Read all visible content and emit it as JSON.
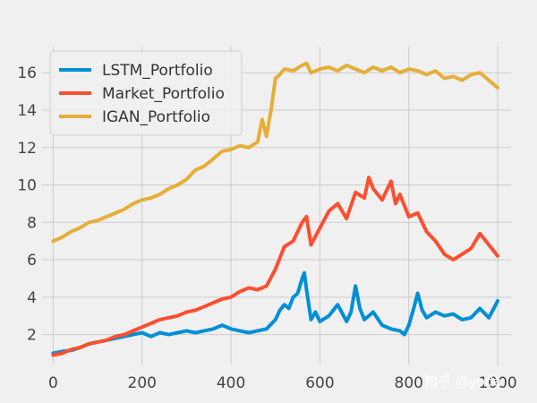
{
  "chart_data": {
    "type": "line",
    "title": "",
    "xlabel": "",
    "ylabel": "",
    "xlim": [
      -25,
      1030
    ],
    "ylim": [
      0.4,
      17.4
    ],
    "xticks": [
      0,
      200,
      400,
      600,
      800,
      1000
    ],
    "yticks": [
      2,
      4,
      6,
      8,
      10,
      12,
      14,
      16
    ],
    "grid": true,
    "legend_position": "top-left",
    "series": [
      {
        "name": "LSTM_Portfolio",
        "color": "#008fd5",
        "x": [
          0,
          20,
          40,
          60,
          80,
          100,
          120,
          140,
          160,
          180,
          200,
          220,
          240,
          260,
          280,
          300,
          320,
          340,
          360,
          380,
          400,
          420,
          440,
          460,
          480,
          500,
          510,
          520,
          530,
          540,
          550,
          560,
          565,
          570,
          575,
          580,
          590,
          600,
          620,
          640,
          660,
          670,
          680,
          690,
          700,
          720,
          740,
          760,
          780,
          790,
          800,
          810,
          820,
          830,
          840,
          860,
          880,
          900,
          920,
          940,
          960,
          980,
          1000
        ],
        "y": [
          1.0,
          1.1,
          1.15,
          1.3,
          1.5,
          1.6,
          1.7,
          1.8,
          1.9,
          2.0,
          2.1,
          1.9,
          2.1,
          2.0,
          2.1,
          2.2,
          2.1,
          2.2,
          2.3,
          2.5,
          2.3,
          2.2,
          2.1,
          2.2,
          2.3,
          2.8,
          3.3,
          3.6,
          3.4,
          4.0,
          4.2,
          5.0,
          5.3,
          4.4,
          3.6,
          2.8,
          3.2,
          2.7,
          3.0,
          3.6,
          2.7,
          3.2,
          4.6,
          3.4,
          2.8,
          3.2,
          2.5,
          2.3,
          2.2,
          2.0,
          2.5,
          3.3,
          4.2,
          3.3,
          2.9,
          3.2,
          3.0,
          3.1,
          2.8,
          2.9,
          3.4,
          2.9,
          3.8
        ]
      },
      {
        "name": "Market_Portfolio",
        "color": "#fc4f30",
        "x": [
          0,
          20,
          40,
          60,
          80,
          100,
          120,
          140,
          160,
          180,
          200,
          220,
          240,
          260,
          280,
          300,
          320,
          340,
          360,
          380,
          400,
          420,
          440,
          460,
          480,
          500,
          520,
          540,
          560,
          570,
          580,
          600,
          620,
          640,
          660,
          680,
          700,
          710,
          720,
          740,
          760,
          770,
          780,
          800,
          820,
          840,
          860,
          880,
          900,
          920,
          940,
          960,
          980,
          1000
        ],
        "y": [
          0.9,
          1.0,
          1.2,
          1.3,
          1.5,
          1.6,
          1.7,
          1.9,
          2.0,
          2.2,
          2.4,
          2.6,
          2.8,
          2.9,
          3.0,
          3.2,
          3.3,
          3.5,
          3.7,
          3.9,
          4.0,
          4.3,
          4.5,
          4.4,
          4.6,
          5.5,
          6.7,
          7.0,
          8.0,
          8.3,
          6.8,
          7.7,
          8.6,
          9.0,
          8.2,
          9.6,
          9.3,
          10.4,
          9.8,
          9.2,
          10.2,
          9.0,
          9.5,
          8.3,
          8.5,
          7.5,
          7.0,
          6.3,
          6.0,
          6.3,
          6.6,
          7.4,
          6.8,
          6.2
        ]
      },
      {
        "name": "IGAN_Portfolio",
        "color": "#e5ae38",
        "x": [
          0,
          20,
          40,
          60,
          80,
          100,
          120,
          140,
          160,
          180,
          200,
          220,
          240,
          260,
          280,
          300,
          320,
          340,
          360,
          380,
          400,
          420,
          440,
          460,
          470,
          480,
          490,
          500,
          510,
          520,
          540,
          560,
          570,
          580,
          600,
          620,
          640,
          660,
          680,
          700,
          720,
          740,
          760,
          780,
          800,
          820,
          840,
          860,
          880,
          900,
          920,
          940,
          960,
          980,
          990,
          1000
        ],
        "y": [
          7.0,
          7.2,
          7.5,
          7.7,
          8.0,
          8.1,
          8.3,
          8.5,
          8.7,
          9.0,
          9.2,
          9.3,
          9.5,
          9.8,
          10.0,
          10.3,
          10.8,
          11.0,
          11.4,
          11.8,
          11.9,
          12.1,
          12.0,
          12.3,
          13.5,
          12.6,
          14.0,
          15.7,
          15.9,
          16.2,
          16.1,
          16.4,
          16.5,
          16.0,
          16.2,
          16.3,
          16.1,
          16.4,
          16.2,
          16.0,
          16.3,
          16.1,
          16.3,
          16.0,
          16.2,
          16.1,
          15.9,
          16.1,
          15.7,
          15.8,
          15.6,
          15.9,
          16.0,
          15.6,
          15.4,
          15.2
        ]
      }
    ]
  },
  "watermark": {
    "text": "知乎 @yoda"
  }
}
